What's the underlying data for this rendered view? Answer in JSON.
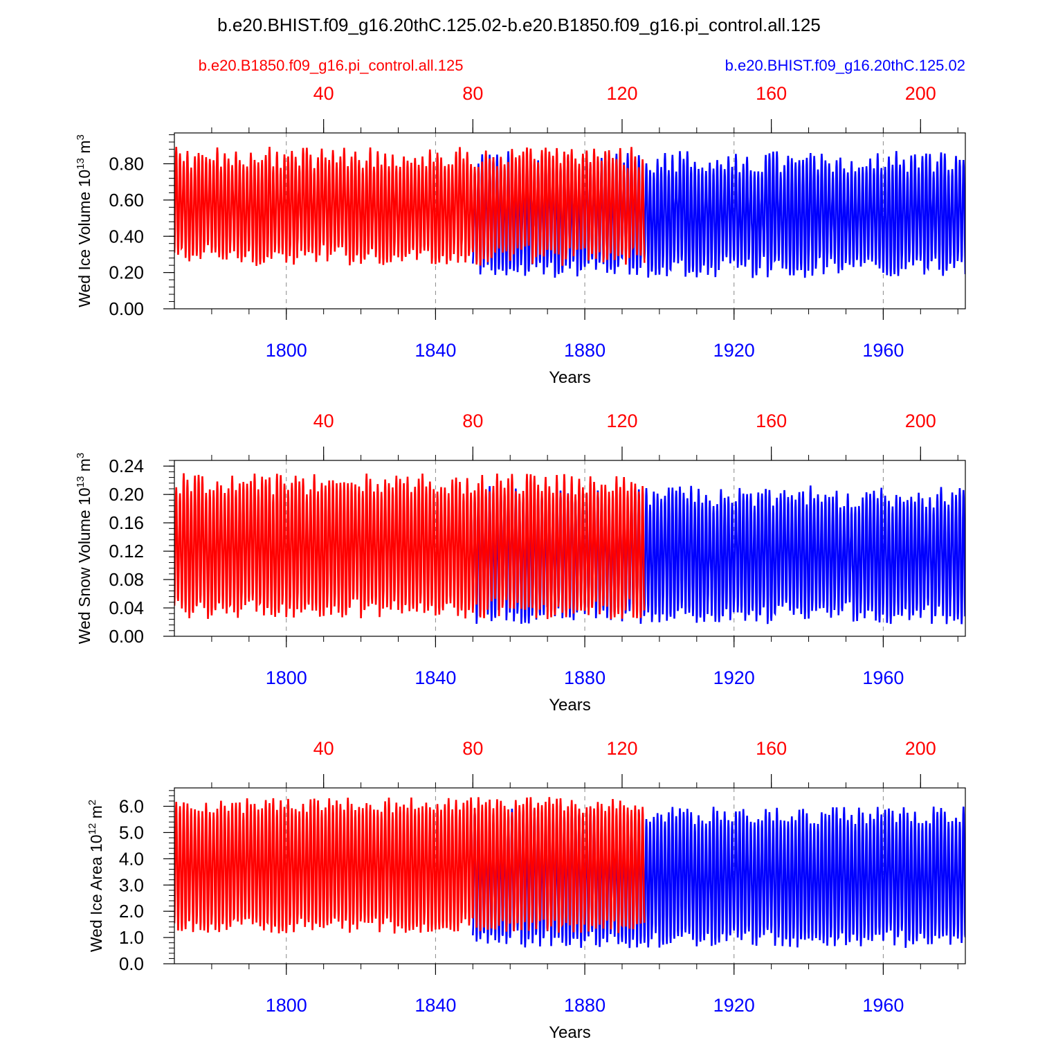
{
  "title": "b.e20.BHIST.f09_g16.20thC.125.02-b.e20.B1850.f09_g16.pi_control.all.125",
  "legend": {
    "control_label": "b.e20.B1850.f09_g16.pi_control.all.125",
    "hist_label": "b.e20.BHIST.f09_g16.20thC.125.02"
  },
  "colors": {
    "control": "#ff0000",
    "hist": "#0000ff",
    "axis": "#000000",
    "grid": "#888888"
  },
  "chart_data": [
    {
      "type": "line",
      "ylabel_main": "Wed Ice Volume 10",
      "ylabel_exp": "13",
      "ylabel_unit": "m",
      "ylabel_unit_exp": "3",
      "xlabel": "Years",
      "ylim": [
        0,
        0.97
      ],
      "yticks": [
        0.0,
        0.2,
        0.4,
        0.6,
        0.8
      ],
      "ytick_labels": [
        "0.00",
        "0.20",
        "0.40",
        "0.60",
        "0.80"
      ],
      "xlim_bottom": [
        1770,
        1982
      ],
      "xticks_bottom": [
        1800,
        1840,
        1880,
        1920,
        1960
      ],
      "xticks_top": [
        40,
        80,
        120,
        160,
        200
      ],
      "top_offset": 1770,
      "series": [
        {
          "name": "b.e20.B1850.f09_g16.pi_control.all.125",
          "color": "#ff0000",
          "year_start": 1770,
          "year_end": 1896,
          "mean": 0.565,
          "amp": 0.27,
          "jitter": 0.06
        },
        {
          "name": "b.e20.BHIST.f09_g16.20thC.125.02",
          "color": "#0000ff",
          "year_start": 1850,
          "year_end": 1982,
          "mean": 0.52,
          "amp": 0.29,
          "jitter": 0.06
        }
      ]
    },
    {
      "type": "line",
      "ylabel_main": "Wed Snow Volume 10",
      "ylabel_exp": "13",
      "ylabel_unit": "m",
      "ylabel_unit_exp": "3",
      "xlabel": "Years",
      "ylim": [
        0,
        0.248
      ],
      "yticks": [
        0.0,
        0.04,
        0.08,
        0.12,
        0.16,
        0.2,
        0.24
      ],
      "ytick_labels": [
        "0.00",
        "0.04",
        "0.08",
        "0.12",
        "0.16",
        "0.20",
        "0.24"
      ],
      "xlim_bottom": [
        1770,
        1982
      ],
      "xticks_bottom": [
        1800,
        1840,
        1880,
        1920,
        1960
      ],
      "xticks_top": [
        40,
        80,
        120,
        160,
        200
      ],
      "top_offset": 1770,
      "series": [
        {
          "name": "b.e20.B1850.f09_g16.pi_control.all.125",
          "color": "#ff0000",
          "year_start": 1770,
          "year_end": 1896,
          "mean": 0.127,
          "amp": 0.088,
          "jitter": 0.015
        },
        {
          "name": "b.e20.BHIST.f09_g16.20thC.125.02",
          "color": "#0000ff",
          "year_start": 1850,
          "year_end": 1982,
          "mean": 0.115,
          "amp": 0.082,
          "jitter": 0.016
        }
      ]
    },
    {
      "type": "line",
      "ylabel_main": "Wed Ice Area 10",
      "ylabel_exp": "12",
      "ylabel_unit": "m",
      "ylabel_unit_exp": "2",
      "xlabel": "Years",
      "ylim": [
        0,
        6.7
      ],
      "yticks": [
        0.0,
        1.0,
        2.0,
        3.0,
        4.0,
        5.0,
        6.0
      ],
      "ytick_labels": [
        "0.0",
        "1.0",
        "2.0",
        "3.0",
        "4.0",
        "5.0",
        "6.0"
      ],
      "xlim_bottom": [
        1770,
        1982
      ],
      "xticks_bottom": [
        1800,
        1840,
        1880,
        1920,
        1960
      ],
      "xticks_top": [
        40,
        80,
        120,
        160,
        200
      ],
      "top_offset": 1770,
      "series": [
        {
          "name": "b.e20.B1850.f09_g16.pi_control.all.125",
          "color": "#ff0000",
          "year_start": 1770,
          "year_end": 1896,
          "mean": 3.75,
          "amp": 2.3,
          "jitter": 0.3
        },
        {
          "name": "b.e20.BHIST.f09_g16.20thC.125.02",
          "color": "#0000ff",
          "year_start": 1850,
          "year_end": 1982,
          "mean": 3.3,
          "amp": 2.35,
          "jitter": 0.35
        }
      ]
    }
  ]
}
